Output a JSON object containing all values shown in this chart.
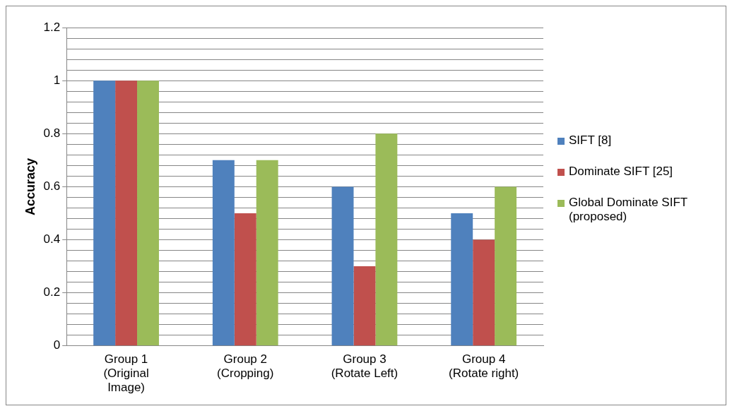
{
  "chart_data": {
    "type": "bar",
    "ylabel": "Accuracy",
    "categories": [
      "Group 1 (Original Image)",
      "Group 2 (Cropping)",
      "Group 3 (Rotate Left)",
      "Group 4 (Rotate right)"
    ],
    "series": [
      {
        "name": "SIFT [8]",
        "color": "#4f81bd",
        "values": [
          1,
          0.7,
          0.6,
          0.5
        ]
      },
      {
        "name": "Dominate SIFT [25]",
        "color": "#c0504d",
        "values": [
          1,
          0.5,
          0.3,
          0.4
        ]
      },
      {
        "name": "Global Dominate SIFT (proposed)",
        "color": "#9bbb59",
        "values": [
          1,
          0.7,
          0.8,
          0.6
        ]
      }
    ],
    "ylim": [
      0,
      1.2
    ],
    "yticks": [
      0,
      {
        "value": 0.04,
        "label": null
      },
      {
        "value": 0.08,
        "label": null
      },
      {
        "value": 0.12,
        "label": null
      },
      {
        "value": 0.16,
        "label": null
      },
      0.2,
      {
        "value": 0.24,
        "label": null
      },
      {
        "value": 0.28,
        "label": null
      },
      {
        "value": 0.32,
        "label": null
      },
      {
        "value": 0.36,
        "label": null
      },
      0.4,
      {
        "value": 0.44,
        "label": null
      },
      {
        "value": 0.48,
        "label": null
      },
      {
        "value": 0.52,
        "label": null
      },
      {
        "value": 0.56,
        "label": null
      },
      0.6,
      {
        "value": 0.64,
        "label": null
      },
      {
        "value": 0.68,
        "label": null
      },
      {
        "value": 0.72,
        "label": null
      },
      {
        "value": 0.76,
        "label": null
      },
      0.8,
      {
        "value": 0.84,
        "label": null
      },
      {
        "value": 0.88,
        "label": null
      },
      {
        "value": 0.92,
        "label": null
      },
      {
        "value": 0.96,
        "label": null
      },
      1,
      {
        "value": 1.04,
        "label": null
      },
      {
        "value": 1.08,
        "label": null
      },
      {
        "value": 1.12,
        "label": null
      },
      {
        "value": 1.16,
        "label": null
      },
      1.2
    ],
    "grid": "y",
    "legend": "right"
  }
}
